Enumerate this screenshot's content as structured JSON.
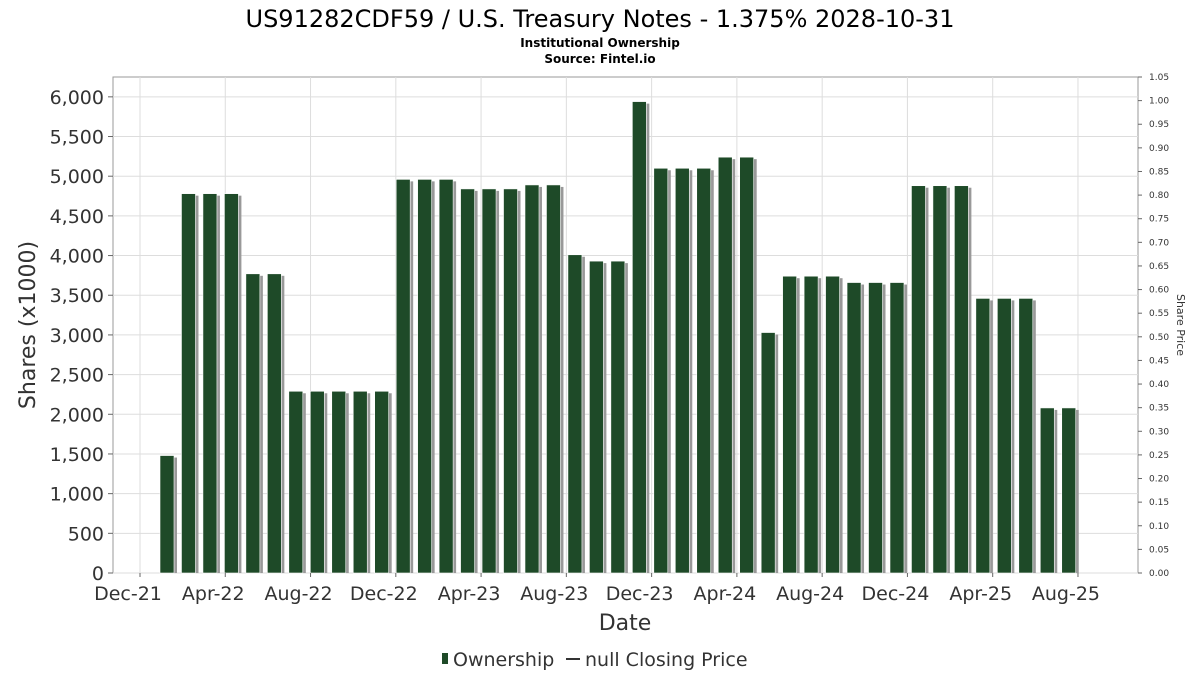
{
  "chart_data": {
    "type": "bar",
    "title": "US91282CDF59 / U.S. Treasury Notes - 1.375% 2028-10-31",
    "subtitle": "Institutional Ownership",
    "source": "Source: Fintel.io",
    "xlabel": "Date",
    "ylabel": "Shares (x1000)",
    "y2label": "Share Price",
    "ylim": [
      0,
      6250
    ],
    "y2lim": [
      0,
      1.05
    ],
    "yticks": [
      "0",
      "500",
      "1,000",
      "1,500",
      "2,000",
      "2,500",
      "3,000",
      "3,500",
      "4,000",
      "4,500",
      "5,000",
      "5,500",
      "6,000"
    ],
    "y2ticks": [
      "0.00",
      "0.05",
      "0.10",
      "0.15",
      "0.20",
      "0.25",
      "0.30",
      "0.35",
      "0.40",
      "0.45",
      "0.50",
      "0.55",
      "0.60",
      "0.65",
      "0.70",
      "0.75",
      "0.80",
      "0.85",
      "0.90",
      "0.95",
      "1.00",
      "1.05"
    ],
    "xticks": [
      "Dec-21",
      "Apr-22",
      "Aug-22",
      "Dec-22",
      "Apr-23",
      "Aug-23",
      "Dec-23",
      "Apr-24",
      "Aug-24",
      "Dec-24",
      "Apr-25",
      "Aug-25"
    ],
    "grid": true,
    "legend_position": "bottom",
    "series": [
      {
        "name": "Ownership",
        "color": "#1e4a28",
        "values": [
          1480,
          4780,
          4780,
          4780,
          3770,
          3770,
          2290,
          2290,
          2290,
          2290,
          2290,
          4960,
          4960,
          4960,
          4840,
          4840,
          4840,
          4890,
          4890,
          4010,
          3930,
          3930,
          5940,
          5100,
          5100,
          5100,
          5240,
          5240,
          3030,
          3740,
          3740,
          3740,
          3660,
          3660,
          3660,
          4880,
          4880,
          4880,
          3460,
          3460,
          3460,
          2080,
          2080
        ]
      },
      {
        "name": "null Closing Price",
        "color": "#000000",
        "values": []
      }
    ]
  }
}
